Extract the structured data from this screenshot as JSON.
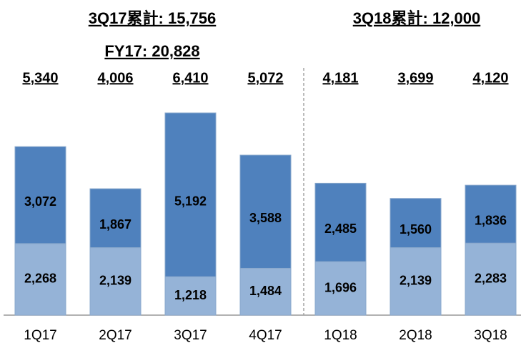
{
  "chart_data": {
    "type": "stacked_bar",
    "annotations": [
      "3Q17累計: 15,756",
      "3Q18累計: 12,000",
      "FY17: 20,828"
    ],
    "categories": [
      "1Q17",
      "2Q17",
      "3Q17",
      "4Q17",
      "1Q18",
      "2Q18",
      "3Q18"
    ],
    "total_labels": [
      "5,340",
      "4,006",
      "6,410",
      "5,072",
      "4,181",
      "3,699",
      "4,120"
    ],
    "series": [
      {
        "color": "#95b3d7",
        "values": [
          2268,
          2139,
          1218,
          1484,
          1696,
          2139,
          2283
        ],
        "value_labels": [
          "2,268",
          "2,139",
          "1,218",
          "1,484",
          "1,696",
          "2,139",
          "2,283"
        ]
      },
      {
        "color": "#4f81bd",
        "values": [
          3072,
          1867,
          5192,
          3588,
          2485,
          1560,
          1836
        ],
        "value_labels": [
          "3,072",
          "1,867",
          "5,192",
          "3,588",
          "2,485",
          "1,560",
          "1,836"
        ]
      }
    ]
  }
}
